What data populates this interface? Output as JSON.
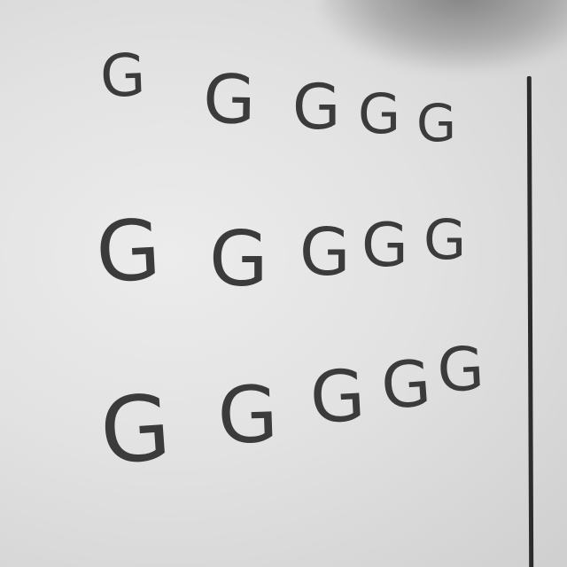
{
  "rows": [
    {
      "letters": [
        "G",
        "G",
        "G",
        "G",
        "G"
      ]
    },
    {
      "letters": [
        "G",
        "G",
        "G",
        "G",
        "G"
      ]
    },
    {
      "letters": [
        "G",
        "G",
        "G",
        "G",
        "G"
      ]
    }
  ],
  "colors": {
    "ink": "#3b3b3b",
    "board": "#e6e6e6",
    "line": "#2c2c2c"
  }
}
